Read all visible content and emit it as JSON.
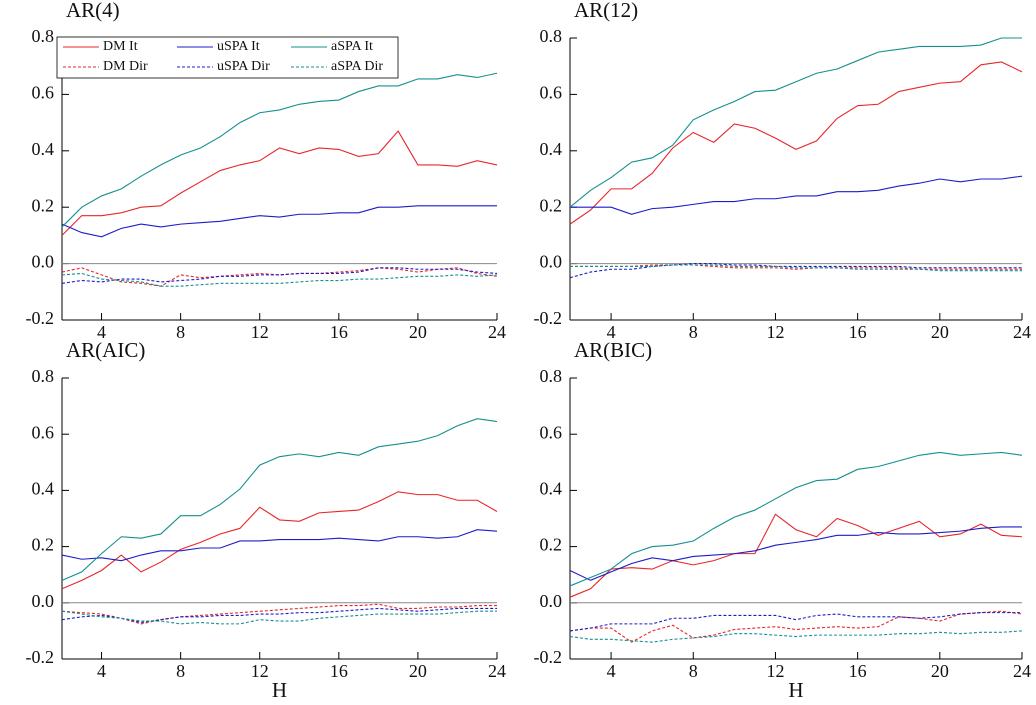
{
  "chart_data": [
    {
      "type": "line",
      "title": "AR(4)",
      "legend": "upper left",
      "x": [
        2,
        3,
        4,
        5,
        6,
        7,
        8,
        9,
        10,
        11,
        12,
        13,
        14,
        15,
        16,
        17,
        18,
        19,
        20,
        21,
        22,
        23,
        24
      ],
      "xlim": [
        2,
        24
      ],
      "xticks": [
        4,
        8,
        12,
        16,
        20,
        24
      ],
      "ylim": [
        -0.2,
        0.8
      ],
      "yticks": [
        -0.2,
        {
          "value": 0,
          "label": "0.0"
        },
        0.2,
        0.4,
        0.6,
        0.8
      ],
      "series": [
        {
          "name": "DM It",
          "color": "#e8262a",
          "style": "solid",
          "values": [
            0.1,
            0.17,
            0.17,
            0.18,
            0.2,
            0.205,
            0.25,
            0.29,
            0.33,
            0.35,
            0.365,
            0.41,
            0.39,
            0.41,
            0.405,
            0.38,
            0.39,
            0.47,
            0.35,
            0.35,
            0.345,
            0.365,
            0.35
          ]
        },
        {
          "name": "uSPA It",
          "color": "#1c1cc8",
          "style": "solid",
          "values": [
            0.14,
            0.11,
            0.095,
            0.125,
            0.14,
            0.13,
            0.14,
            0.145,
            0.15,
            0.16,
            0.17,
            0.165,
            0.175,
            0.175,
            0.18,
            0.18,
            0.2,
            0.2,
            0.205,
            0.205,
            0.205,
            0.205,
            0.205
          ]
        },
        {
          "name": "aSPA It",
          "color": "#14908e",
          "style": "solid",
          "values": [
            0.13,
            0.2,
            0.24,
            0.265,
            0.31,
            0.35,
            0.385,
            0.41,
            0.45,
            0.5,
            0.535,
            0.545,
            0.565,
            0.575,
            0.58,
            0.61,
            0.63,
            0.63,
            0.655,
            0.655,
            0.67,
            0.66,
            0.675
          ]
        },
        {
          "name": "DM Dir",
          "color": "#e8262a",
          "style": "dashed",
          "values": [
            -0.03,
            -0.015,
            -0.04,
            -0.065,
            -0.07,
            -0.08,
            -0.04,
            -0.05,
            -0.045,
            -0.04,
            -0.035,
            -0.04,
            -0.035,
            -0.035,
            -0.03,
            -0.025,
            -0.015,
            -0.02,
            -0.03,
            -0.02,
            -0.015,
            -0.035,
            -0.045
          ]
        },
        {
          "name": "uSPA Dir",
          "color": "#1c1cc8",
          "style": "dashed",
          "values": [
            -0.07,
            -0.06,
            -0.065,
            -0.055,
            -0.055,
            -0.065,
            -0.06,
            -0.055,
            -0.045,
            -0.045,
            -0.04,
            -0.04,
            -0.035,
            -0.035,
            -0.035,
            -0.03,
            -0.015,
            -0.015,
            -0.02,
            -0.02,
            -0.02,
            -0.03,
            -0.035
          ]
        },
        {
          "name": "aSPA Dir",
          "color": "#14908e",
          "style": "dashed",
          "values": [
            -0.04,
            -0.035,
            -0.055,
            -0.06,
            -0.065,
            -0.08,
            -0.08,
            -0.075,
            -0.07,
            -0.07,
            -0.07,
            -0.07,
            -0.065,
            -0.06,
            -0.06,
            -0.055,
            -0.055,
            -0.05,
            -0.045,
            -0.045,
            -0.04,
            -0.045,
            -0.04
          ]
        }
      ]
    },
    {
      "type": "line",
      "title": "AR(12)",
      "x": [
        2,
        3,
        4,
        5,
        6,
        7,
        8,
        9,
        10,
        11,
        12,
        13,
        14,
        15,
        16,
        17,
        18,
        19,
        20,
        21,
        22,
        23,
        24
      ],
      "xlim": [
        2,
        24
      ],
      "xticks": [
        4,
        8,
        12,
        16,
        20,
        24
      ],
      "ylim": [
        -0.2,
        0.8
      ],
      "yticks": [
        -0.2,
        {
          "value": 0,
          "label": "0.0"
        },
        0.2,
        0.4,
        0.6,
        0.8
      ],
      "series": [
        {
          "name": "DM It",
          "color": "#e8262a",
          "style": "solid",
          "values": [
            0.14,
            0.19,
            0.265,
            0.265,
            0.32,
            0.41,
            0.465,
            0.43,
            0.495,
            0.48,
            0.445,
            0.405,
            0.435,
            0.515,
            0.56,
            0.565,
            0.61,
            0.625,
            0.64,
            0.645,
            0.705,
            0.715,
            0.68
          ]
        },
        {
          "name": "uSPA It",
          "color": "#1c1cc8",
          "style": "solid",
          "values": [
            0.2,
            0.2,
            0.2,
            0.175,
            0.195,
            0.2,
            0.21,
            0.22,
            0.22,
            0.23,
            0.23,
            0.24,
            0.24,
            0.255,
            0.255,
            0.26,
            0.275,
            0.285,
            0.3,
            0.29,
            0.3,
            0.3,
            0.31
          ]
        },
        {
          "name": "aSPA It",
          "color": "#14908e",
          "style": "solid",
          "values": [
            0.2,
            0.26,
            0.305,
            0.36,
            0.375,
            0.42,
            0.51,
            0.545,
            0.575,
            0.61,
            0.615,
            0.645,
            0.675,
            0.69,
            0.72,
            0.75,
            0.76,
            0.77,
            0.77,
            0.77,
            0.775,
            0.8,
            0.8
          ]
        },
        {
          "name": "DM Dir",
          "color": "#e8262a",
          "style": "dashed",
          "values": [
            -0.01,
            -0.01,
            -0.01,
            -0.01,
            -0.005,
            -0.005,
            -0.005,
            -0.01,
            -0.015,
            -0.015,
            -0.015,
            -0.02,
            -0.015,
            -0.015,
            -0.015,
            -0.015,
            -0.015,
            -0.02,
            -0.02,
            -0.02,
            -0.02,
            -0.02,
            -0.02
          ]
        },
        {
          "name": "uSPA Dir",
          "color": "#1c1cc8",
          "style": "dashed",
          "values": [
            -0.05,
            -0.03,
            -0.02,
            -0.02,
            -0.01,
            -0.005,
            0,
            0,
            -0.005,
            -0.005,
            -0.01,
            -0.01,
            -0.01,
            -0.01,
            -0.01,
            -0.01,
            -0.01,
            -0.015,
            -0.015,
            -0.015,
            -0.015,
            -0.015,
            -0.015
          ]
        },
        {
          "name": "aSPA Dir",
          "color": "#14908e",
          "style": "dashed",
          "values": [
            -0.01,
            -0.01,
            -0.01,
            -0.01,
            -0.01,
            -0.005,
            -0.005,
            -0.005,
            -0.01,
            -0.01,
            -0.01,
            -0.015,
            -0.015,
            -0.015,
            -0.02,
            -0.02,
            -0.02,
            -0.02,
            -0.025,
            -0.025,
            -0.025,
            -0.025,
            -0.025
          ]
        }
      ]
    },
    {
      "type": "line",
      "title": "AR(AIC)",
      "xlabel": "H",
      "x": [
        2,
        3,
        4,
        5,
        6,
        7,
        8,
        9,
        10,
        11,
        12,
        13,
        14,
        15,
        16,
        17,
        18,
        19,
        20,
        21,
        22,
        23,
        24
      ],
      "xlim": [
        2,
        24
      ],
      "xticks": [
        4,
        8,
        12,
        16,
        20,
        24
      ],
      "ylim": [
        -0.2,
        0.8
      ],
      "yticks": [
        -0.2,
        {
          "value": 0,
          "label": "0.0"
        },
        0.2,
        0.4,
        0.6,
        0.8
      ],
      "series": [
        {
          "name": "DM It",
          "color": "#e8262a",
          "style": "solid",
          "values": [
            0.05,
            0.08,
            0.115,
            0.17,
            0.11,
            0.145,
            0.19,
            0.215,
            0.245,
            0.265,
            0.34,
            0.295,
            0.29,
            0.32,
            0.325,
            0.33,
            0.36,
            0.395,
            0.385,
            0.385,
            0.365,
            0.365,
            0.325
          ]
        },
        {
          "name": "uSPA It",
          "color": "#1c1cc8",
          "style": "solid",
          "values": [
            0.17,
            0.155,
            0.16,
            0.15,
            0.17,
            0.185,
            0.185,
            0.195,
            0.195,
            0.22,
            0.22,
            0.225,
            0.225,
            0.225,
            0.23,
            0.225,
            0.22,
            0.235,
            0.235,
            0.23,
            0.235,
            0.26,
            0.255
          ]
        },
        {
          "name": "aSPA It",
          "color": "#14908e",
          "style": "solid",
          "values": [
            0.08,
            0.11,
            0.175,
            0.235,
            0.23,
            0.245,
            0.31,
            0.31,
            0.35,
            0.405,
            0.49,
            0.52,
            0.53,
            0.52,
            0.535,
            0.525,
            0.555,
            0.565,
            0.575,
            0.595,
            0.63,
            0.655,
            0.645
          ]
        },
        {
          "name": "DM Dir",
          "color": "#e8262a",
          "style": "dashed",
          "values": [
            -0.03,
            -0.035,
            -0.04,
            -0.055,
            -0.075,
            -0.06,
            -0.05,
            -0.045,
            -0.04,
            -0.035,
            -0.03,
            -0.025,
            -0.02,
            -0.015,
            -0.01,
            -0.01,
            -0.005,
            -0.02,
            -0.02,
            -0.015,
            -0.015,
            -0.01,
            -0.01
          ]
        },
        {
          "name": "uSPA Dir",
          "color": "#1c1cc8",
          "style": "dashed",
          "values": [
            -0.06,
            -0.05,
            -0.045,
            -0.055,
            -0.07,
            -0.06,
            -0.05,
            -0.05,
            -0.045,
            -0.045,
            -0.04,
            -0.04,
            -0.035,
            -0.035,
            -0.03,
            -0.025,
            -0.02,
            -0.025,
            -0.03,
            -0.025,
            -0.02,
            -0.02,
            -0.02
          ]
        },
        {
          "name": "aSPA Dir",
          "color": "#14908e",
          "style": "dashed",
          "values": [
            -0.03,
            -0.04,
            -0.05,
            -0.055,
            -0.065,
            -0.065,
            -0.075,
            -0.07,
            -0.075,
            -0.075,
            -0.06,
            -0.065,
            -0.065,
            -0.055,
            -0.05,
            -0.045,
            -0.04,
            -0.04,
            -0.04,
            -0.04,
            -0.035,
            -0.03,
            -0.03
          ]
        }
      ]
    },
    {
      "type": "line",
      "title": "AR(BIC)",
      "xlabel": "H",
      "x": [
        2,
        3,
        4,
        5,
        6,
        7,
        8,
        9,
        10,
        11,
        12,
        13,
        14,
        15,
        16,
        17,
        18,
        19,
        20,
        21,
        22,
        23,
        24
      ],
      "xlim": [
        2,
        24
      ],
      "xticks": [
        4,
        8,
        12,
        16,
        20,
        24
      ],
      "ylim": [
        -0.2,
        0.8
      ],
      "yticks": [
        -0.2,
        {
          "value": 0,
          "label": "0.0"
        },
        0.2,
        0.4,
        0.6,
        0.8
      ],
      "series": [
        {
          "name": "DM It",
          "color": "#e8262a",
          "style": "solid",
          "values": [
            0.02,
            0.05,
            0.12,
            0.125,
            0.12,
            0.15,
            0.135,
            0.15,
            0.175,
            0.175,
            0.315,
            0.26,
            0.235,
            0.3,
            0.275,
            0.24,
            0.265,
            0.29,
            0.235,
            0.245,
            0.28,
            0.24,
            0.235
          ]
        },
        {
          "name": "uSPA It",
          "color": "#1c1cc8",
          "style": "solid",
          "values": [
            0.115,
            0.08,
            0.11,
            0.14,
            0.16,
            0.15,
            0.165,
            0.17,
            0.175,
            0.185,
            0.205,
            0.215,
            0.225,
            0.24,
            0.24,
            0.25,
            0.245,
            0.245,
            0.25,
            0.255,
            0.265,
            0.27,
            0.27
          ]
        },
        {
          "name": "aSPA It",
          "color": "#14908e",
          "style": "solid",
          "values": [
            0.06,
            0.09,
            0.12,
            0.175,
            0.2,
            0.205,
            0.22,
            0.265,
            0.305,
            0.33,
            0.37,
            0.41,
            0.435,
            0.44,
            0.475,
            0.485,
            0.505,
            0.525,
            0.535,
            0.525,
            0.53,
            0.535,
            0.525
          ]
        },
        {
          "name": "DM Dir",
          "color": "#e8262a",
          "style": "dashed",
          "values": [
            -0.1,
            -0.09,
            -0.09,
            -0.14,
            -0.1,
            -0.08,
            -0.125,
            -0.115,
            -0.095,
            -0.09,
            -0.085,
            -0.095,
            -0.09,
            -0.085,
            -0.09,
            -0.085,
            -0.05,
            -0.055,
            -0.065,
            -0.04,
            -0.035,
            -0.03,
            -0.04
          ]
        },
        {
          "name": "uSPA Dir",
          "color": "#1c1cc8",
          "style": "dashed",
          "values": [
            -0.1,
            -0.09,
            -0.075,
            -0.075,
            -0.075,
            -0.055,
            -0.055,
            -0.045,
            -0.045,
            -0.045,
            -0.045,
            -0.06,
            -0.045,
            -0.04,
            -0.05,
            -0.05,
            -0.05,
            -0.055,
            -0.05,
            -0.04,
            -0.035,
            -0.035,
            -0.035
          ]
        },
        {
          "name": "aSPA Dir",
          "color": "#14908e",
          "style": "dashed",
          "values": [
            -0.12,
            -0.13,
            -0.13,
            -0.135,
            -0.14,
            -0.13,
            -0.125,
            -0.12,
            -0.11,
            -0.11,
            -0.115,
            -0.12,
            -0.115,
            -0.115,
            -0.115,
            -0.115,
            -0.11,
            -0.11,
            -0.105,
            -0.11,
            -0.105,
            -0.105,
            -0.1
          ]
        }
      ]
    }
  ]
}
